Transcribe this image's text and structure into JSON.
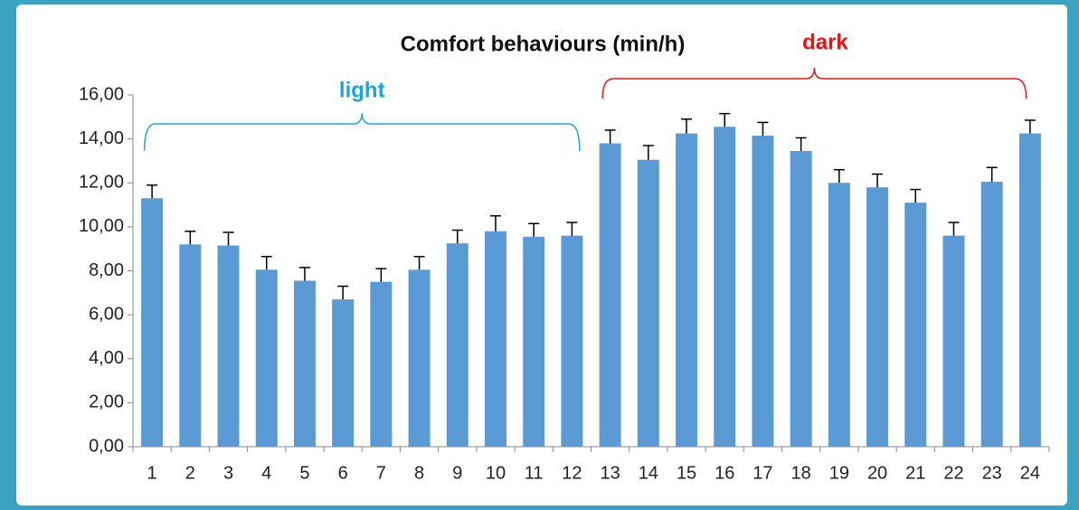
{
  "chart_data": {
    "type": "bar",
    "title": "Comfort behaviours (min/h)",
    "annotations": [
      {
        "text": "light",
        "color": "#1aa6d8"
      },
      {
        "text": "dark",
        "color": "#ee1111"
      }
    ],
    "categories": [
      "1",
      "2",
      "3",
      "4",
      "5",
      "6",
      "7",
      "8",
      "9",
      "10",
      "11",
      "12",
      "13",
      "14",
      "15",
      "16",
      "17",
      "18",
      "19",
      "20",
      "21",
      "22",
      "23",
      "24"
    ],
    "values": [
      11.3,
      9.2,
      9.15,
      8.05,
      7.55,
      6.7,
      7.5,
      8.05,
      9.25,
      9.8,
      9.55,
      9.6,
      13.8,
      13.05,
      14.25,
      14.55,
      14.15,
      13.45,
      12.0,
      11.8,
      11.1,
      9.6,
      12.05,
      14.25
    ],
    "errors": [
      0.6,
      0.6,
      0.6,
      0.6,
      0.6,
      0.6,
      0.6,
      0.6,
      0.6,
      0.7,
      0.6,
      0.6,
      0.6,
      0.65,
      0.65,
      0.6,
      0.6,
      0.6,
      0.6,
      0.6,
      0.6,
      0.6,
      0.65,
      0.6
    ],
    "color": "#5b9bd5",
    "ylim": [
      0,
      16
    ],
    "yticks": [
      {
        "value": 0,
        "label": "0,00"
      },
      {
        "value": 2,
        "label": "2,00"
      },
      {
        "value": 4,
        "label": "4,00"
      },
      {
        "value": 6,
        "label": "6,00"
      },
      {
        "value": 8,
        "label": "8,00"
      },
      {
        "value": 10,
        "label": "10,00"
      },
      {
        "value": 12,
        "label": "12,00"
      },
      {
        "value": 14,
        "label": "14,00"
      },
      {
        "value": 16,
        "label": "16,00"
      }
    ],
    "grid": false
  }
}
